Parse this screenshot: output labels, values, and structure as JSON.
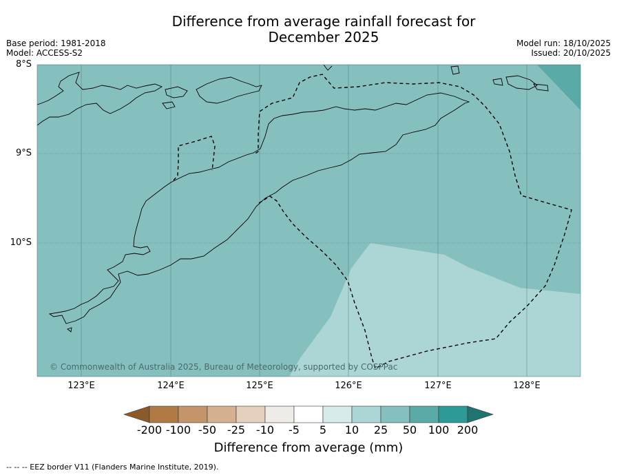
{
  "title": {
    "line1": "Difference from average rainfall forecast for",
    "line2": "December 2025"
  },
  "meta": {
    "base_period": "Base period: 1981-2018",
    "model": "Model: ACCESS-S2",
    "model_run": "Model run: 18/10/2025",
    "issued": "Issued: 20/10/2025"
  },
  "map": {
    "lat_labels": [
      "8°S",
      "9°S",
      "10°S"
    ],
    "lon_labels": [
      "123°E",
      "124°E",
      "125°E",
      "126°E",
      "127°E",
      "128°E"
    ],
    "copyright": "© Commonwealth of Australia 2025, Bureau of Meteorology, supported by COSPPac",
    "colors": {
      "category_25_50": "#85c0bf",
      "category_10_25": "#abd6d5",
      "category_50_100": "#5aaaa8",
      "coastline": "#000000",
      "gridline": "#4a6a6a"
    }
  },
  "colorbar": {
    "ticks": [
      "-200",
      "-100",
      "-50",
      "-25",
      "-10",
      "-5",
      "5",
      "10",
      "25",
      "50",
      "100",
      "200"
    ],
    "colors": [
      "#8b5a2b",
      "#b07a45",
      "#c4956a",
      "#d4b091",
      "#e5d0bd",
      "#efebe7",
      "#ffffff",
      "#d7ecea",
      "#abd6d5",
      "#85c0bf",
      "#5aaaa8",
      "#2e9a96",
      "#1f7470"
    ],
    "title": "Difference from average (mm)"
  },
  "footnote": "--  --  -- EEZ border V11 (Flanders Marine Institute, 2019)."
}
